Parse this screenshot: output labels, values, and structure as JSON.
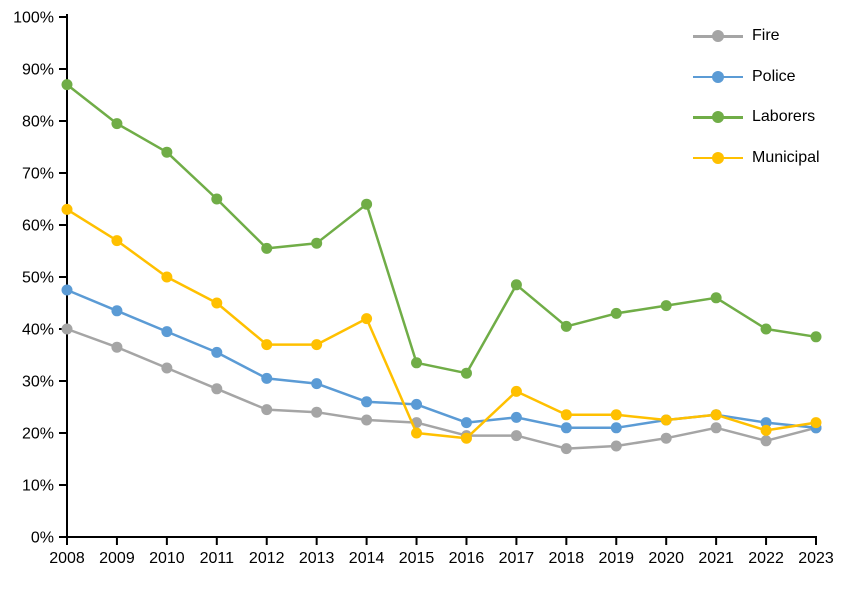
{
  "chart_data": {
    "type": "line",
    "title": "",
    "xlabel": "",
    "ylabel": "",
    "x_labels": [
      "2008",
      "2009",
      "2010",
      "2011",
      "2012",
      "2013",
      "2014",
      "2015",
      "2016",
      "2017",
      "2018",
      "2019",
      "2020",
      "2021",
      "2022",
      "2023"
    ],
    "y_tick_labels": [
      "0%",
      "10%",
      "20%",
      "30%",
      "40%",
      "50%",
      "60%",
      "70%",
      "80%",
      "90%",
      "100%"
    ],
    "ylim": [
      0,
      100
    ],
    "grid": false,
    "legend_position": "top-right-inside",
    "background_color": "#FFFFFF",
    "axis_color": "#000000",
    "series": [
      {
        "name": "Fire",
        "color": "#A5A5A5",
        "values": [
          40,
          36.5,
          32.5,
          28.5,
          24.5,
          24,
          22.5,
          22,
          19.5,
          19.5,
          17,
          17.5,
          19,
          21,
          18.5,
          21
        ]
      },
      {
        "name": "Police",
        "color": "#5B9BD5",
        "values": [
          47.5,
          43.5,
          39.5,
          35.5,
          30.5,
          29.5,
          26,
          25.5,
          22,
          23,
          21,
          21,
          22.5,
          23.5,
          22,
          21
        ]
      },
      {
        "name": "Laborers",
        "color": "#70AD47",
        "values": [
          87,
          79.5,
          74,
          65,
          55.5,
          56.5,
          64,
          33.5,
          31.5,
          48.5,
          40.5,
          43,
          44.5,
          46,
          40,
          38.5
        ]
      },
      {
        "name": "Municipal",
        "color": "#FFC000",
        "values": [
          63,
          57,
          50,
          45,
          37,
          37,
          42,
          20,
          19,
          28,
          23.5,
          23.5,
          22.5,
          23.5,
          20.5,
          22
        ]
      }
    ]
  }
}
